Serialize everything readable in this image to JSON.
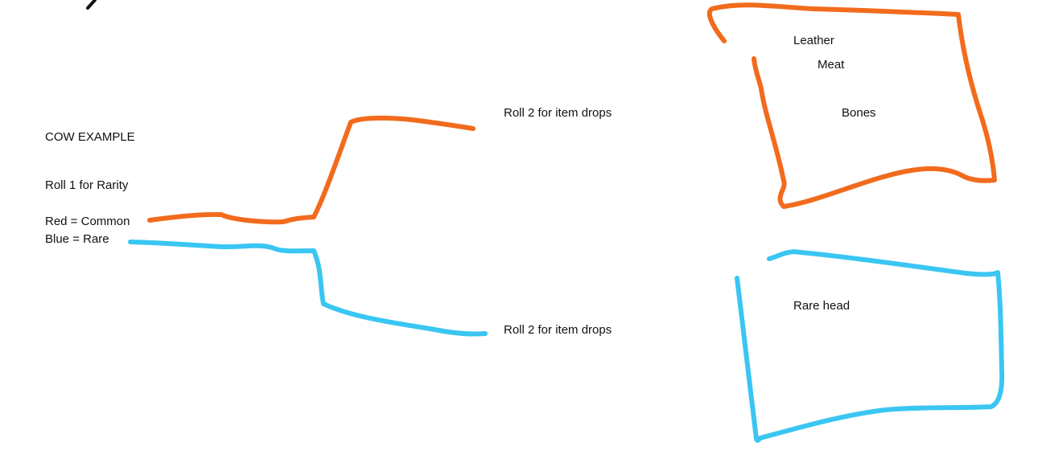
{
  "colors": {
    "common": "#f26b1d",
    "rare": "#3ac6f2",
    "ink": "#111111",
    "background": "#ffffff"
  },
  "title": "COW EXAMPLE",
  "roll1": "Roll 1 for Rarity",
  "legend": {
    "red": "Red = Common",
    "blue": "Blue = Rare"
  },
  "branches": {
    "common": {
      "roll_label": "Roll 2 for item drops",
      "drops": [
        "Leather",
        "Meat",
        "Bones"
      ]
    },
    "rare": {
      "roll_label": "Roll 2 for item drops",
      "drops": [
        "Rare head"
      ]
    }
  }
}
